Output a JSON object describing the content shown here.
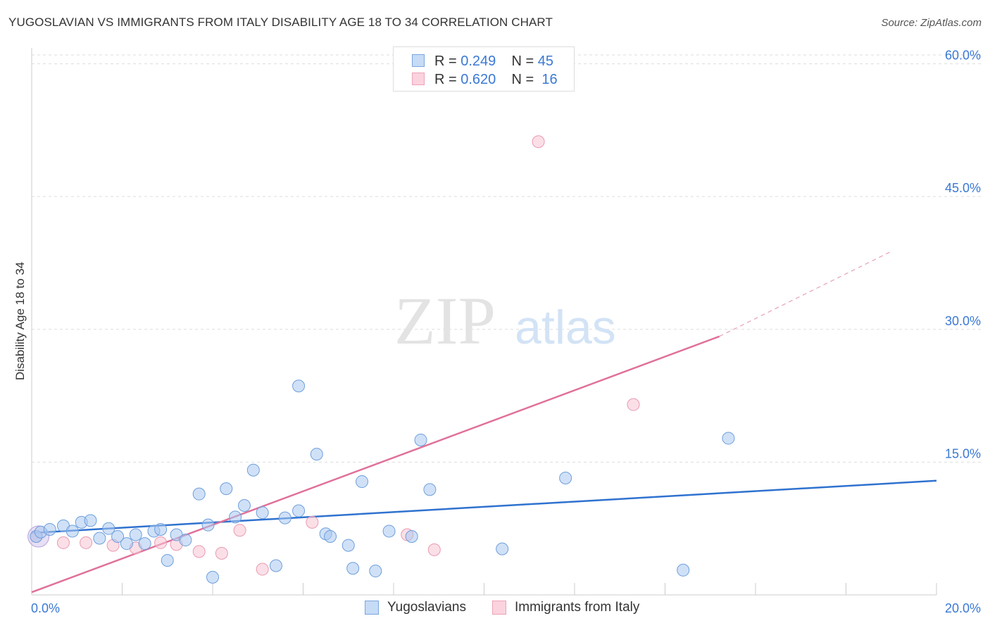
{
  "header": {
    "title": "YUGOSLAVIAN VS IMMIGRANTS FROM ITALY DISABILITY AGE 18 TO 34 CORRELATION CHART",
    "source": "Source: ZipAtlas.com"
  },
  "watermark": {
    "zip": "ZIP",
    "atlas": "atlas"
  },
  "legend_top": {
    "rows": [
      {
        "r_label": "R =",
        "r_value": "0.249",
        "n_label": "N =",
        "n_value": "45"
      },
      {
        "r_label": "R =",
        "r_value": "0.620",
        "n_label": "N =",
        "n_value": "16"
      }
    ]
  },
  "legend_bottom": {
    "series1": "Yugoslavians",
    "series2": "Immigrants from Italy"
  },
  "colors": {
    "blue_fill": "#a9c8f0",
    "blue_stroke": "#6f9fdc",
    "blue_line": "#2f72cf",
    "pink_fill": "#f7c4d3",
    "pink_stroke": "#e99ab2",
    "pink_line": "#e0709a",
    "axis_text": "#3a78d4",
    "grid": "#dddddd"
  },
  "chart_data": {
    "type": "scatter",
    "title": "YUGOSLAVIAN VS IMMIGRANTS FROM ITALY DISABILITY AGE 18 TO 34 CORRELATION CHART",
    "xlabel": "",
    "ylabel": "Disability Age 18 to 34",
    "xlim": [
      0,
      20
    ],
    "ylim": [
      0,
      61
    ],
    "x_tick_labels": [
      "0.0%",
      "20.0%"
    ],
    "y_ticks": [
      15,
      30,
      45,
      60
    ],
    "y_tick_labels": [
      "15.0%",
      "30.0%",
      "45.0%",
      "60.0%"
    ],
    "series": [
      {
        "name": "Yugoslavians",
        "r": 0.249,
        "n": 45,
        "points": [
          [
            0.1,
            6.6
          ],
          [
            0.2,
            7.1
          ],
          [
            0.4,
            7.4
          ],
          [
            0.7,
            7.8
          ],
          [
            0.9,
            7.2
          ],
          [
            1.1,
            8.2
          ],
          [
            1.3,
            8.4
          ],
          [
            1.5,
            6.4
          ],
          [
            1.7,
            7.5
          ],
          [
            1.9,
            6.6
          ],
          [
            2.1,
            5.8
          ],
          [
            2.3,
            6.8
          ],
          [
            2.5,
            5.8
          ],
          [
            2.7,
            7.2
          ],
          [
            2.85,
            7.4
          ],
          [
            3.0,
            3.9
          ],
          [
            3.2,
            6.8
          ],
          [
            3.4,
            6.2
          ],
          [
            3.7,
            11.4
          ],
          [
            3.9,
            7.9
          ],
          [
            4.0,
            2.0
          ],
          [
            4.3,
            12.0
          ],
          [
            4.5,
            8.8
          ],
          [
            4.7,
            10.1
          ],
          [
            4.9,
            14.1
          ],
          [
            5.1,
            9.3
          ],
          [
            5.4,
            3.3
          ],
          [
            5.6,
            8.7
          ],
          [
            5.9,
            9.5
          ],
          [
            5.9,
            23.6
          ],
          [
            6.3,
            15.9
          ],
          [
            6.5,
            6.9
          ],
          [
            6.6,
            6.6
          ],
          [
            7.0,
            5.6
          ],
          [
            7.1,
            3.0
          ],
          [
            7.3,
            12.8
          ],
          [
            7.6,
            2.7
          ],
          [
            7.9,
            7.2
          ],
          [
            8.4,
            6.6
          ],
          [
            8.6,
            17.5
          ],
          [
            8.8,
            11.9
          ],
          [
            10.4,
            5.2
          ],
          [
            11.8,
            13.2
          ],
          [
            14.4,
            2.8
          ],
          [
            15.4,
            17.7
          ]
        ],
        "fit": {
          "x_start": 0,
          "y_start": 7.0,
          "x_end": 20,
          "y_end": 12.9
        }
      },
      {
        "name": "Immigrants from Italy",
        "r": 0.62,
        "n": 16,
        "points": [
          [
            0.1,
            6.6
          ],
          [
            0.7,
            5.9
          ],
          [
            1.2,
            5.9
          ],
          [
            1.8,
            5.6
          ],
          [
            2.3,
            5.3
          ],
          [
            2.85,
            5.9
          ],
          [
            3.2,
            5.7
          ],
          [
            3.7,
            4.9
          ],
          [
            4.2,
            4.7
          ],
          [
            4.6,
            7.3
          ],
          [
            5.1,
            2.9
          ],
          [
            6.2,
            8.2
          ],
          [
            8.3,
            6.8
          ],
          [
            8.9,
            5.1
          ],
          [
            11.2,
            51.2
          ],
          [
            13.3,
            21.5
          ]
        ],
        "fit": {
          "x_start": 0,
          "y_start": 0.3,
          "x_end": 15.2,
          "y_end": 29.2,
          "x_dash_end": 19.0,
          "y_dash_end": 38.8
        }
      }
    ]
  }
}
